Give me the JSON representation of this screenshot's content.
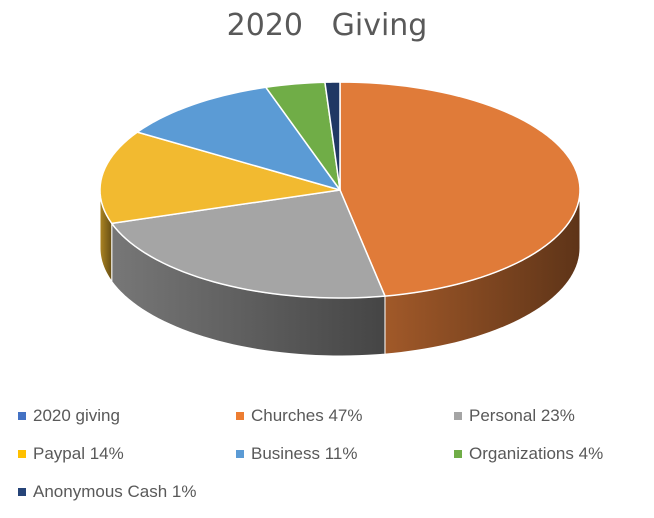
{
  "chart_data": {
    "type": "pie",
    "title": "2020   Giving",
    "categories": [
      "Churches",
      "Personal",
      "Paypal",
      "Business",
      "Organizations",
      "Anonymous Cash"
    ],
    "values": [
      47,
      23,
      14,
      11,
      4,
      1
    ],
    "colors": [
      "#E07B39",
      "#A5A5A5",
      "#F2BA30",
      "#5B9BD5",
      "#70AD47",
      "#203864"
    ],
    "legend": [
      {
        "label": "2020 giving",
        "color": "#4472C4"
      },
      {
        "label": "Churches 47%",
        "color": "#ED7D31"
      },
      {
        "label": "Personal 23%",
        "color": "#A5A5A5"
      },
      {
        "label": "Paypal 14%",
        "color": "#FFC000"
      },
      {
        "label": "Business 11%",
        "color": "#5B9BD5"
      },
      {
        "label": "Organizations 4%",
        "color": "#70AD47"
      },
      {
        "label": "Anonymous Cash 1%",
        "color": "#264478"
      }
    ],
    "legend_position": "bottom",
    "style": "3d-pie"
  }
}
